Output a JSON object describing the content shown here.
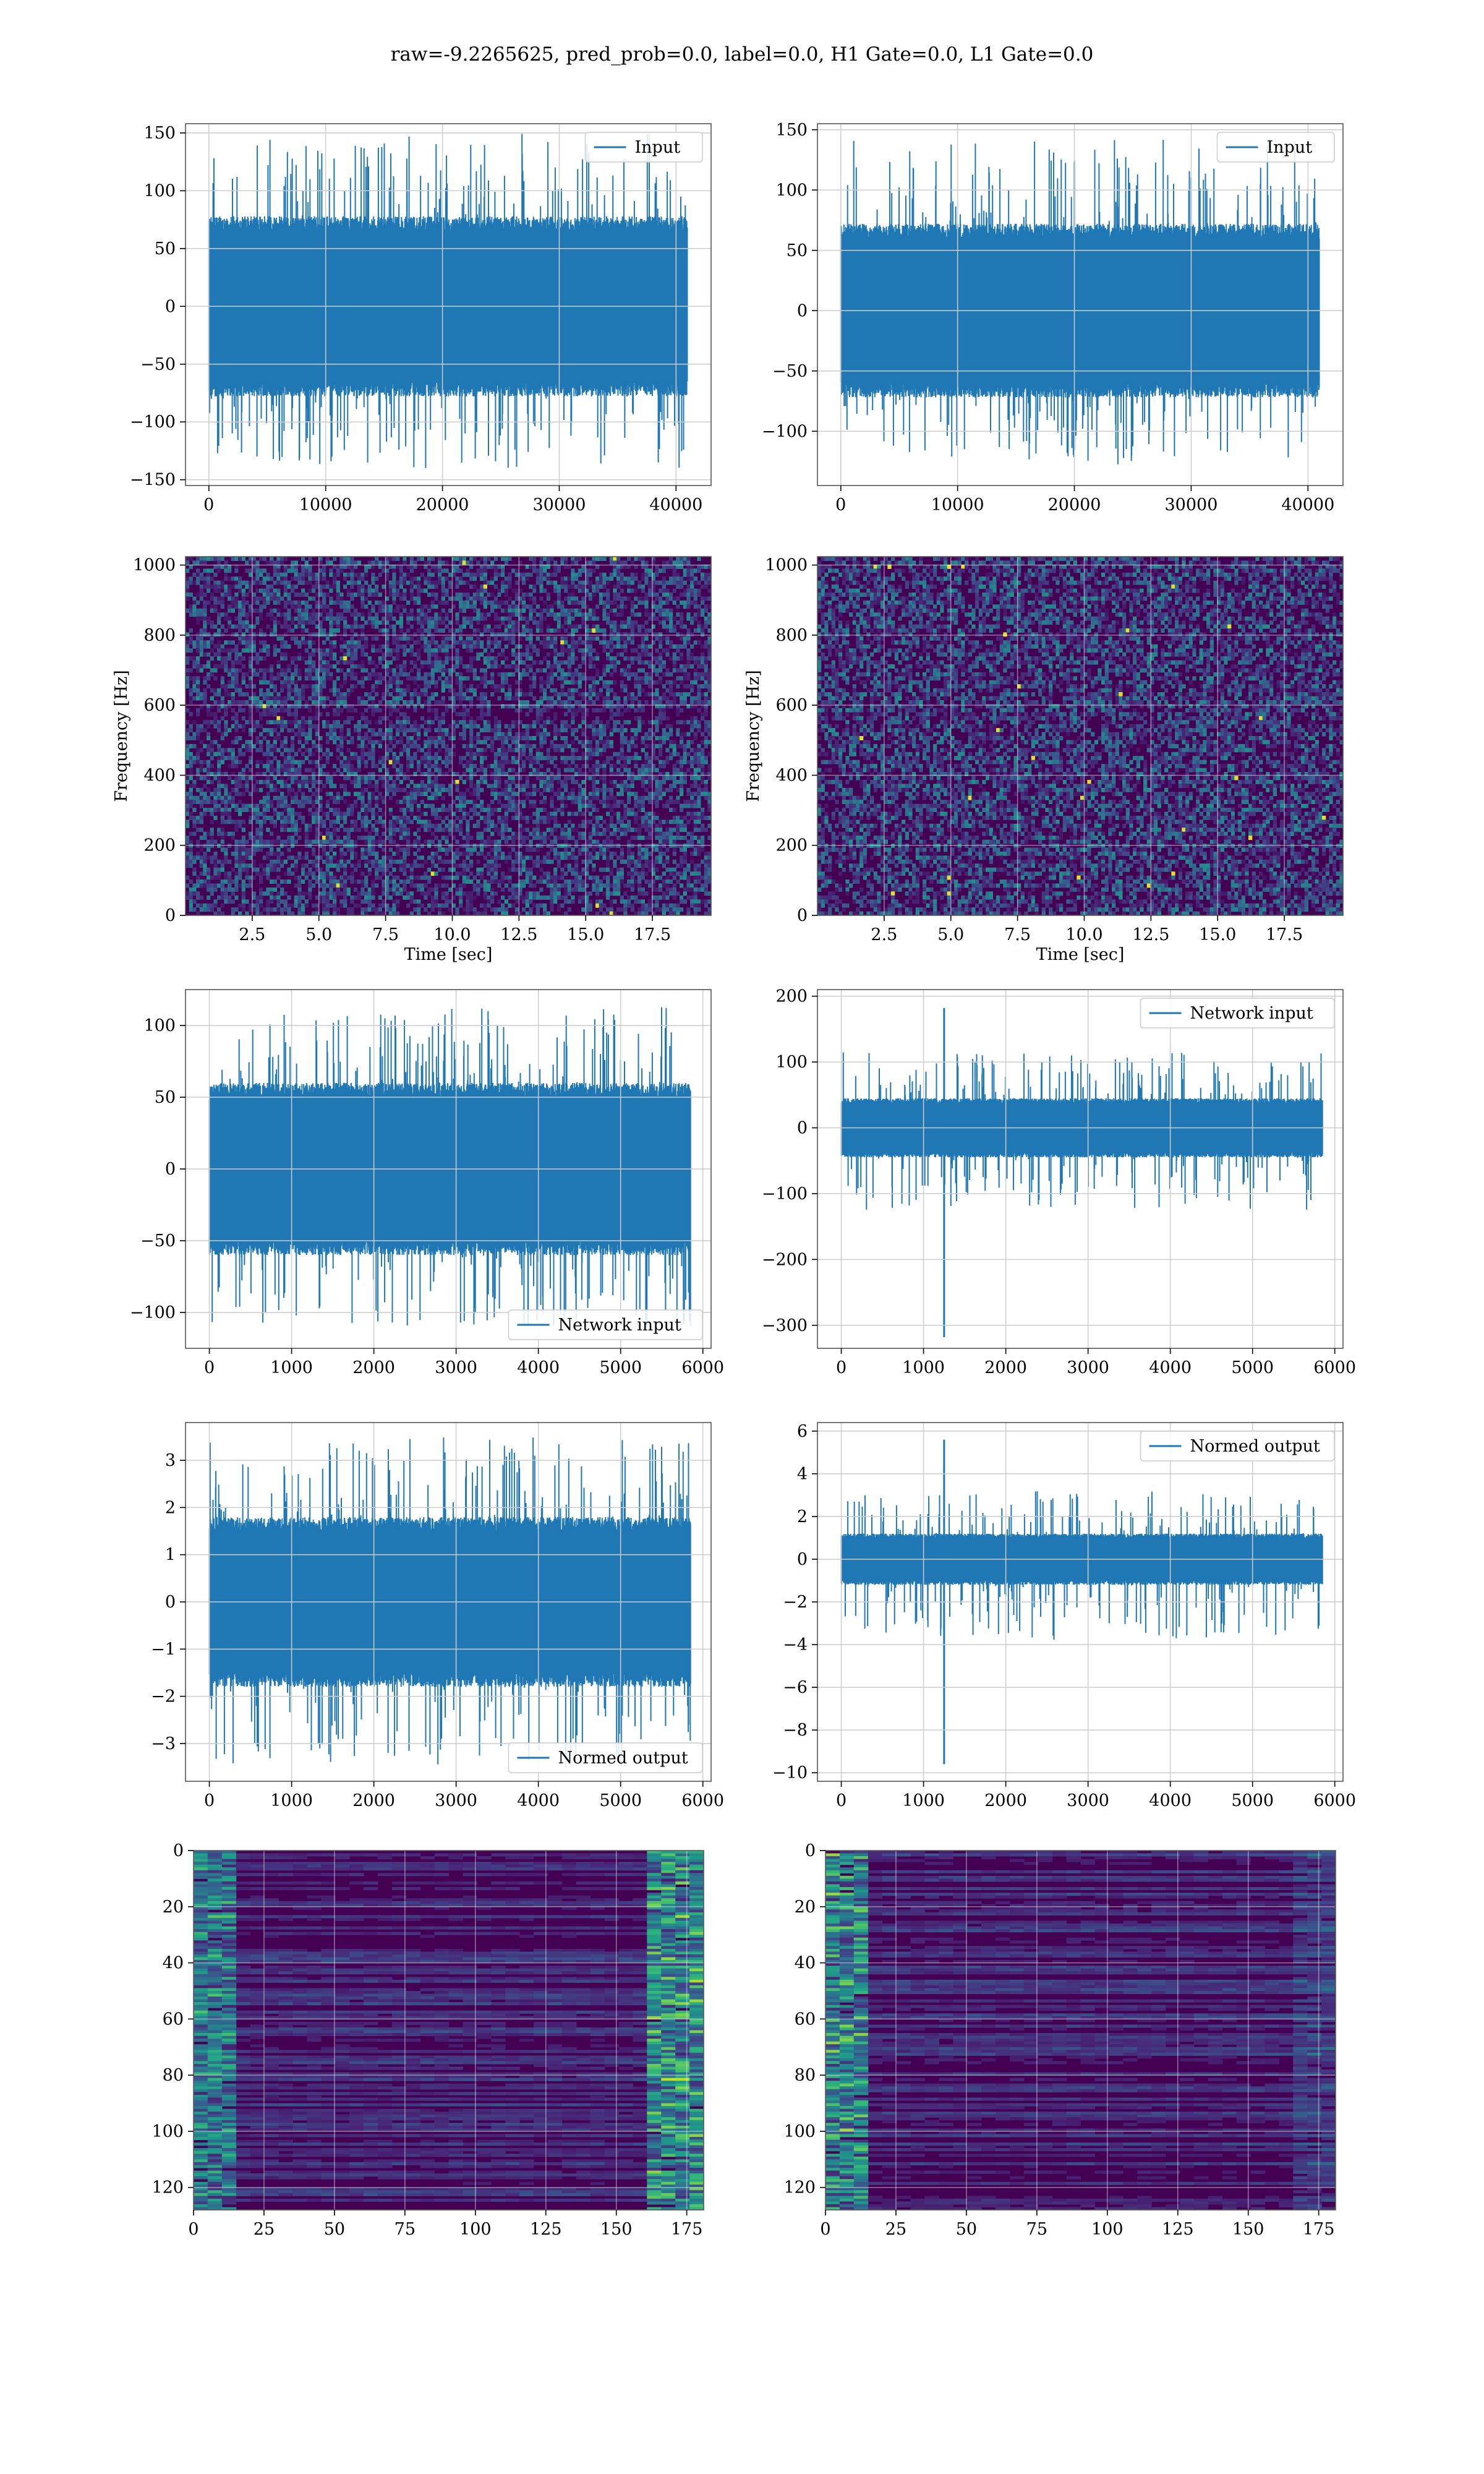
{
  "figure": {
    "title": "raw=-9.2265625, pred_prob=0.0, label=0.0, H1 Gate=0.0, L1 Gate=0.0"
  },
  "colors": {
    "line": "#1f77b4",
    "grid": "#cccccc",
    "viridis_dark": "#440154",
    "viridis_blue": "#3b528b",
    "viridis_teal": "#21918c",
    "viridis_green": "#5ec962",
    "viridis_yellow": "#fde725"
  },
  "chart_data": [
    {
      "id": "p11",
      "type": "line",
      "legend": "Input",
      "legend_loc": "top-right",
      "grid": true,
      "xlim": [
        -2000,
        43000
      ],
      "ylim": [
        -155,
        158
      ],
      "xticks": [
        0,
        10000,
        20000,
        30000,
        40000
      ],
      "xtick_labels": [
        "0",
        "10000",
        "20000",
        "30000",
        "40000"
      ],
      "yticks": [
        -150,
        -100,
        -50,
        0,
        50,
        100,
        150
      ],
      "ytick_labels": [
        "−150",
        "−100",
        "−50",
        "0",
        "50",
        "100",
        "150"
      ],
      "signal": {
        "x_range": [
          0,
          40960
        ],
        "band": 78,
        "peak_max": 150,
        "peak_min": -140,
        "spike_x": null
      }
    },
    {
      "id": "p12",
      "type": "line",
      "legend": "Input",
      "legend_loc": "top-right",
      "grid": true,
      "xlim": [
        -2000,
        43000
      ],
      "ylim": [
        -145,
        155
      ],
      "xticks": [
        0,
        10000,
        20000,
        30000,
        40000
      ],
      "xtick_labels": [
        "0",
        "10000",
        "20000",
        "30000",
        "40000"
      ],
      "yticks": [
        -100,
        -50,
        0,
        50,
        100,
        150
      ],
      "ytick_labels": [
        "−100",
        "−50",
        "0",
        "50",
        "100",
        "150"
      ],
      "signal": {
        "x_range": [
          0,
          40960
        ],
        "band": 72,
        "peak_max": 142,
        "peak_min": -128,
        "spike_x": null
      }
    },
    {
      "id": "p21",
      "type": "heatmap",
      "grid": true,
      "xlabel": "Time [sec]",
      "ylabel": "Frequency [Hz]",
      "xlim": [
        0,
        19.7
      ],
      "ylim": [
        0,
        1024
      ],
      "xticks": [
        2.5,
        5.0,
        7.5,
        10.0,
        12.5,
        15.0,
        17.5
      ],
      "xtick_labels": [
        "2.5",
        "5.0",
        "7.5",
        "10.0",
        "12.5",
        "15.0",
        "17.5"
      ],
      "yticks": [
        0,
        200,
        400,
        600,
        800,
        1000
      ],
      "ytick_labels": [
        "0",
        "200",
        "400",
        "600",
        "800",
        "1000"
      ]
    },
    {
      "id": "p22",
      "type": "heatmap",
      "grid": true,
      "xlabel": "Time [sec]",
      "ylabel": "Frequency [Hz]",
      "xlim": [
        0,
        19.7
      ],
      "ylim": [
        0,
        1024
      ],
      "xticks": [
        2.5,
        5.0,
        7.5,
        10.0,
        12.5,
        15.0,
        17.5
      ],
      "xtick_labels": [
        "2.5",
        "5.0",
        "7.5",
        "10.0",
        "12.5",
        "15.0",
        "17.5"
      ],
      "yticks": [
        0,
        200,
        400,
        600,
        800,
        1000
      ],
      "ytick_labels": [
        "0",
        "200",
        "400",
        "600",
        "800",
        "1000"
      ]
    },
    {
      "id": "p31",
      "type": "line",
      "legend": "Network input",
      "legend_loc": "bottom-right",
      "grid": true,
      "xlim": [
        -290,
        6100
      ],
      "ylim": [
        -125,
        125
      ],
      "xticks": [
        0,
        1000,
        2000,
        3000,
        4000,
        5000,
        6000
      ],
      "xtick_labels": [
        "0",
        "1000",
        "2000",
        "3000",
        "4000",
        "5000",
        "6000"
      ],
      "yticks": [
        -100,
        -50,
        0,
        50,
        100
      ],
      "ytick_labels": [
        "−100",
        "−50",
        "0",
        "50",
        "100"
      ],
      "signal": {
        "x_range": [
          0,
          5850
        ],
        "band": 60,
        "peak_max": 113,
        "peak_min": -112,
        "spike_x": null
      }
    },
    {
      "id": "p32",
      "type": "line",
      "legend": "Network input",
      "legend_loc": "top-right",
      "grid": true,
      "xlim": [
        -290,
        6100
      ],
      "ylim": [
        -335,
        210
      ],
      "xticks": [
        0,
        1000,
        2000,
        3000,
        4000,
        5000,
        6000
      ],
      "xtick_labels": [
        "0",
        "1000",
        "2000",
        "3000",
        "4000",
        "5000",
        "6000"
      ],
      "yticks": [
        -300,
        -200,
        -100,
        0,
        100,
        200
      ],
      "ytick_labels": [
        "−300",
        "−200",
        "−100",
        "0",
        "100",
        "200"
      ],
      "signal": {
        "x_range": [
          0,
          5850
        ],
        "band": 45,
        "peak_max": 115,
        "peak_min": -125,
        "spike_x": 1250,
        "spike_top": 182,
        "spike_bottom": -318
      }
    },
    {
      "id": "p41",
      "type": "line",
      "legend": "Normed output",
      "legend_loc": "bottom-right",
      "grid": true,
      "xlim": [
        -290,
        6100
      ],
      "ylim": [
        -3.8,
        3.8
      ],
      "xticks": [
        0,
        1000,
        2000,
        3000,
        4000,
        5000,
        6000
      ],
      "xtick_labels": [
        "0",
        "1000",
        "2000",
        "3000",
        "4000",
        "5000",
        "6000"
      ],
      "yticks": [
        -3,
        -2,
        -1,
        0,
        1,
        2,
        3
      ],
      "ytick_labels": [
        "−3",
        "−2",
        "−1",
        "0",
        "1",
        "2",
        "3"
      ],
      "signal": {
        "x_range": [
          0,
          5850
        ],
        "band": 1.8,
        "peak_max": 3.5,
        "peak_min": -3.5,
        "spike_x": null
      }
    },
    {
      "id": "p42",
      "type": "line",
      "legend": "Normed output",
      "legend_loc": "top-right",
      "grid": true,
      "xlim": [
        -290,
        6100
      ],
      "ylim": [
        -10.4,
        6.4
      ],
      "xticks": [
        0,
        1000,
        2000,
        3000,
        4000,
        5000,
        6000
      ],
      "xtick_labels": [
        "0",
        "1000",
        "2000",
        "3000",
        "4000",
        "5000",
        "6000"
      ],
      "yticks": [
        -10,
        -8,
        -6,
        -4,
        -2,
        0,
        2,
        4,
        6
      ],
      "ytick_labels": [
        "−10",
        "−8",
        "−6",
        "−4",
        "−2",
        "0",
        "2",
        "4",
        "6"
      ],
      "signal": {
        "x_range": [
          0,
          5850
        ],
        "band": 1.2,
        "peak_max": 3.2,
        "peak_min": -3.8,
        "spike_x": 1250,
        "spike_top": 5.6,
        "spike_bottom": -9.6
      }
    },
    {
      "id": "p51",
      "type": "heatmap",
      "grid": true,
      "xlim": [
        0,
        181
      ],
      "ylim": [
        128,
        0
      ],
      "xticks": [
        0,
        25,
        50,
        75,
        100,
        125,
        150,
        175
      ],
      "xtick_labels": [
        "0",
        "25",
        "50",
        "75",
        "100",
        "125",
        "150",
        "175"
      ],
      "yticks": [
        0,
        20,
        40,
        60,
        80,
        100,
        120
      ],
      "ytick_labels": [
        "0",
        "20",
        "40",
        "60",
        "80",
        "100",
        "120"
      ]
    },
    {
      "id": "p52",
      "type": "heatmap",
      "grid": true,
      "xlim": [
        0,
        181
      ],
      "ylim": [
        128,
        0
      ],
      "xticks": [
        0,
        25,
        50,
        75,
        100,
        125,
        150,
        175
      ],
      "xtick_labels": [
        "0",
        "25",
        "50",
        "75",
        "100",
        "125",
        "150",
        "175"
      ],
      "yticks": [
        0,
        20,
        40,
        60,
        80,
        100,
        120
      ],
      "ytick_labels": [
        "0",
        "20",
        "40",
        "60",
        "80",
        "100",
        "120"
      ]
    }
  ]
}
